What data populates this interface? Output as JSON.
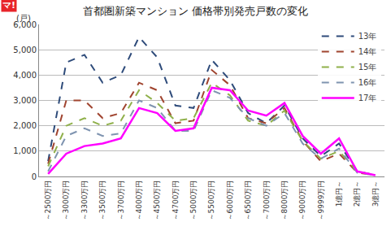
{
  "chart_data": {
    "type": "line",
    "title": "首都圏新築マンション 価格帯別発売戸数の変化",
    "ylabel": "(戸)",
    "annotations": [
      "マ!"
    ],
    "categories": [
      "～2500万円",
      "～3000万円",
      "～3300万円",
      "～3500万円",
      "～3700万円",
      "～4000万円",
      "～4500万円",
      "～4700万円",
      "～5000万円",
      "～5500万円",
      "～6000万円",
      "～6500万円",
      "～7000万円",
      "～8000万円",
      "～9000万円",
      "～9999万円",
      "1億円～",
      "2億円～",
      "3億円～"
    ],
    "series": [
      {
        "name": "13年",
        "color": "#2E4B7A",
        "line_style": "dash",
        "values": [
          600,
          4500,
          4800,
          3700,
          4000,
          5500,
          4700,
          2800,
          2700,
          4600,
          3800,
          2500,
          2100,
          2800,
          1500,
          800,
          1300,
          200,
          50
        ]
      },
      {
        "name": "14年",
        "color": "#A0442F",
        "line_style": "dash",
        "values": [
          500,
          3000,
          3000,
          2300,
          2500,
          3700,
          3400,
          2100,
          2200,
          4200,
          3600,
          2300,
          2100,
          2700,
          1400,
          600,
          900,
          150,
          50
        ]
      },
      {
        "name": "15年",
        "color": "#8FB04A",
        "line_style": "dash",
        "values": [
          400,
          2000,
          2300,
          2000,
          2200,
          3400,
          2900,
          2200,
          2300,
          3700,
          3200,
          2200,
          2000,
          2600,
          1400,
          700,
          1000,
          200,
          50
        ]
      },
      {
        "name": "16年",
        "color": "#7F94B0",
        "line_style": "dash",
        "values": [
          200,
          1600,
          1900,
          1600,
          1700,
          3000,
          2700,
          1800,
          1800,
          3400,
          3100,
          2300,
          2000,
          2500,
          1300,
          700,
          1100,
          150,
          50
        ]
      },
      {
        "name": "17年",
        "color": "#FF00FF",
        "line_style": "solid",
        "values": [
          100,
          900,
          1200,
          1300,
          1500,
          2700,
          2500,
          1800,
          1900,
          3500,
          3400,
          2600,
          2400,
          2900,
          1600,
          900,
          1500,
          200,
          50
        ]
      }
    ],
    "ylim": [
      0,
      6000
    ],
    "yticks": [
      0,
      {
        "value": 1000,
        "label": "1,000"
      },
      {
        "value": 2000,
        "label": "2,000"
      },
      {
        "value": 3000,
        "label": "3,000"
      },
      {
        "value": 4000,
        "label": "4,000"
      },
      {
        "value": 5000,
        "label": "5,000"
      },
      {
        "value": 6000,
        "label": "6,000"
      }
    ],
    "grid": true,
    "legend": "top-right"
  }
}
